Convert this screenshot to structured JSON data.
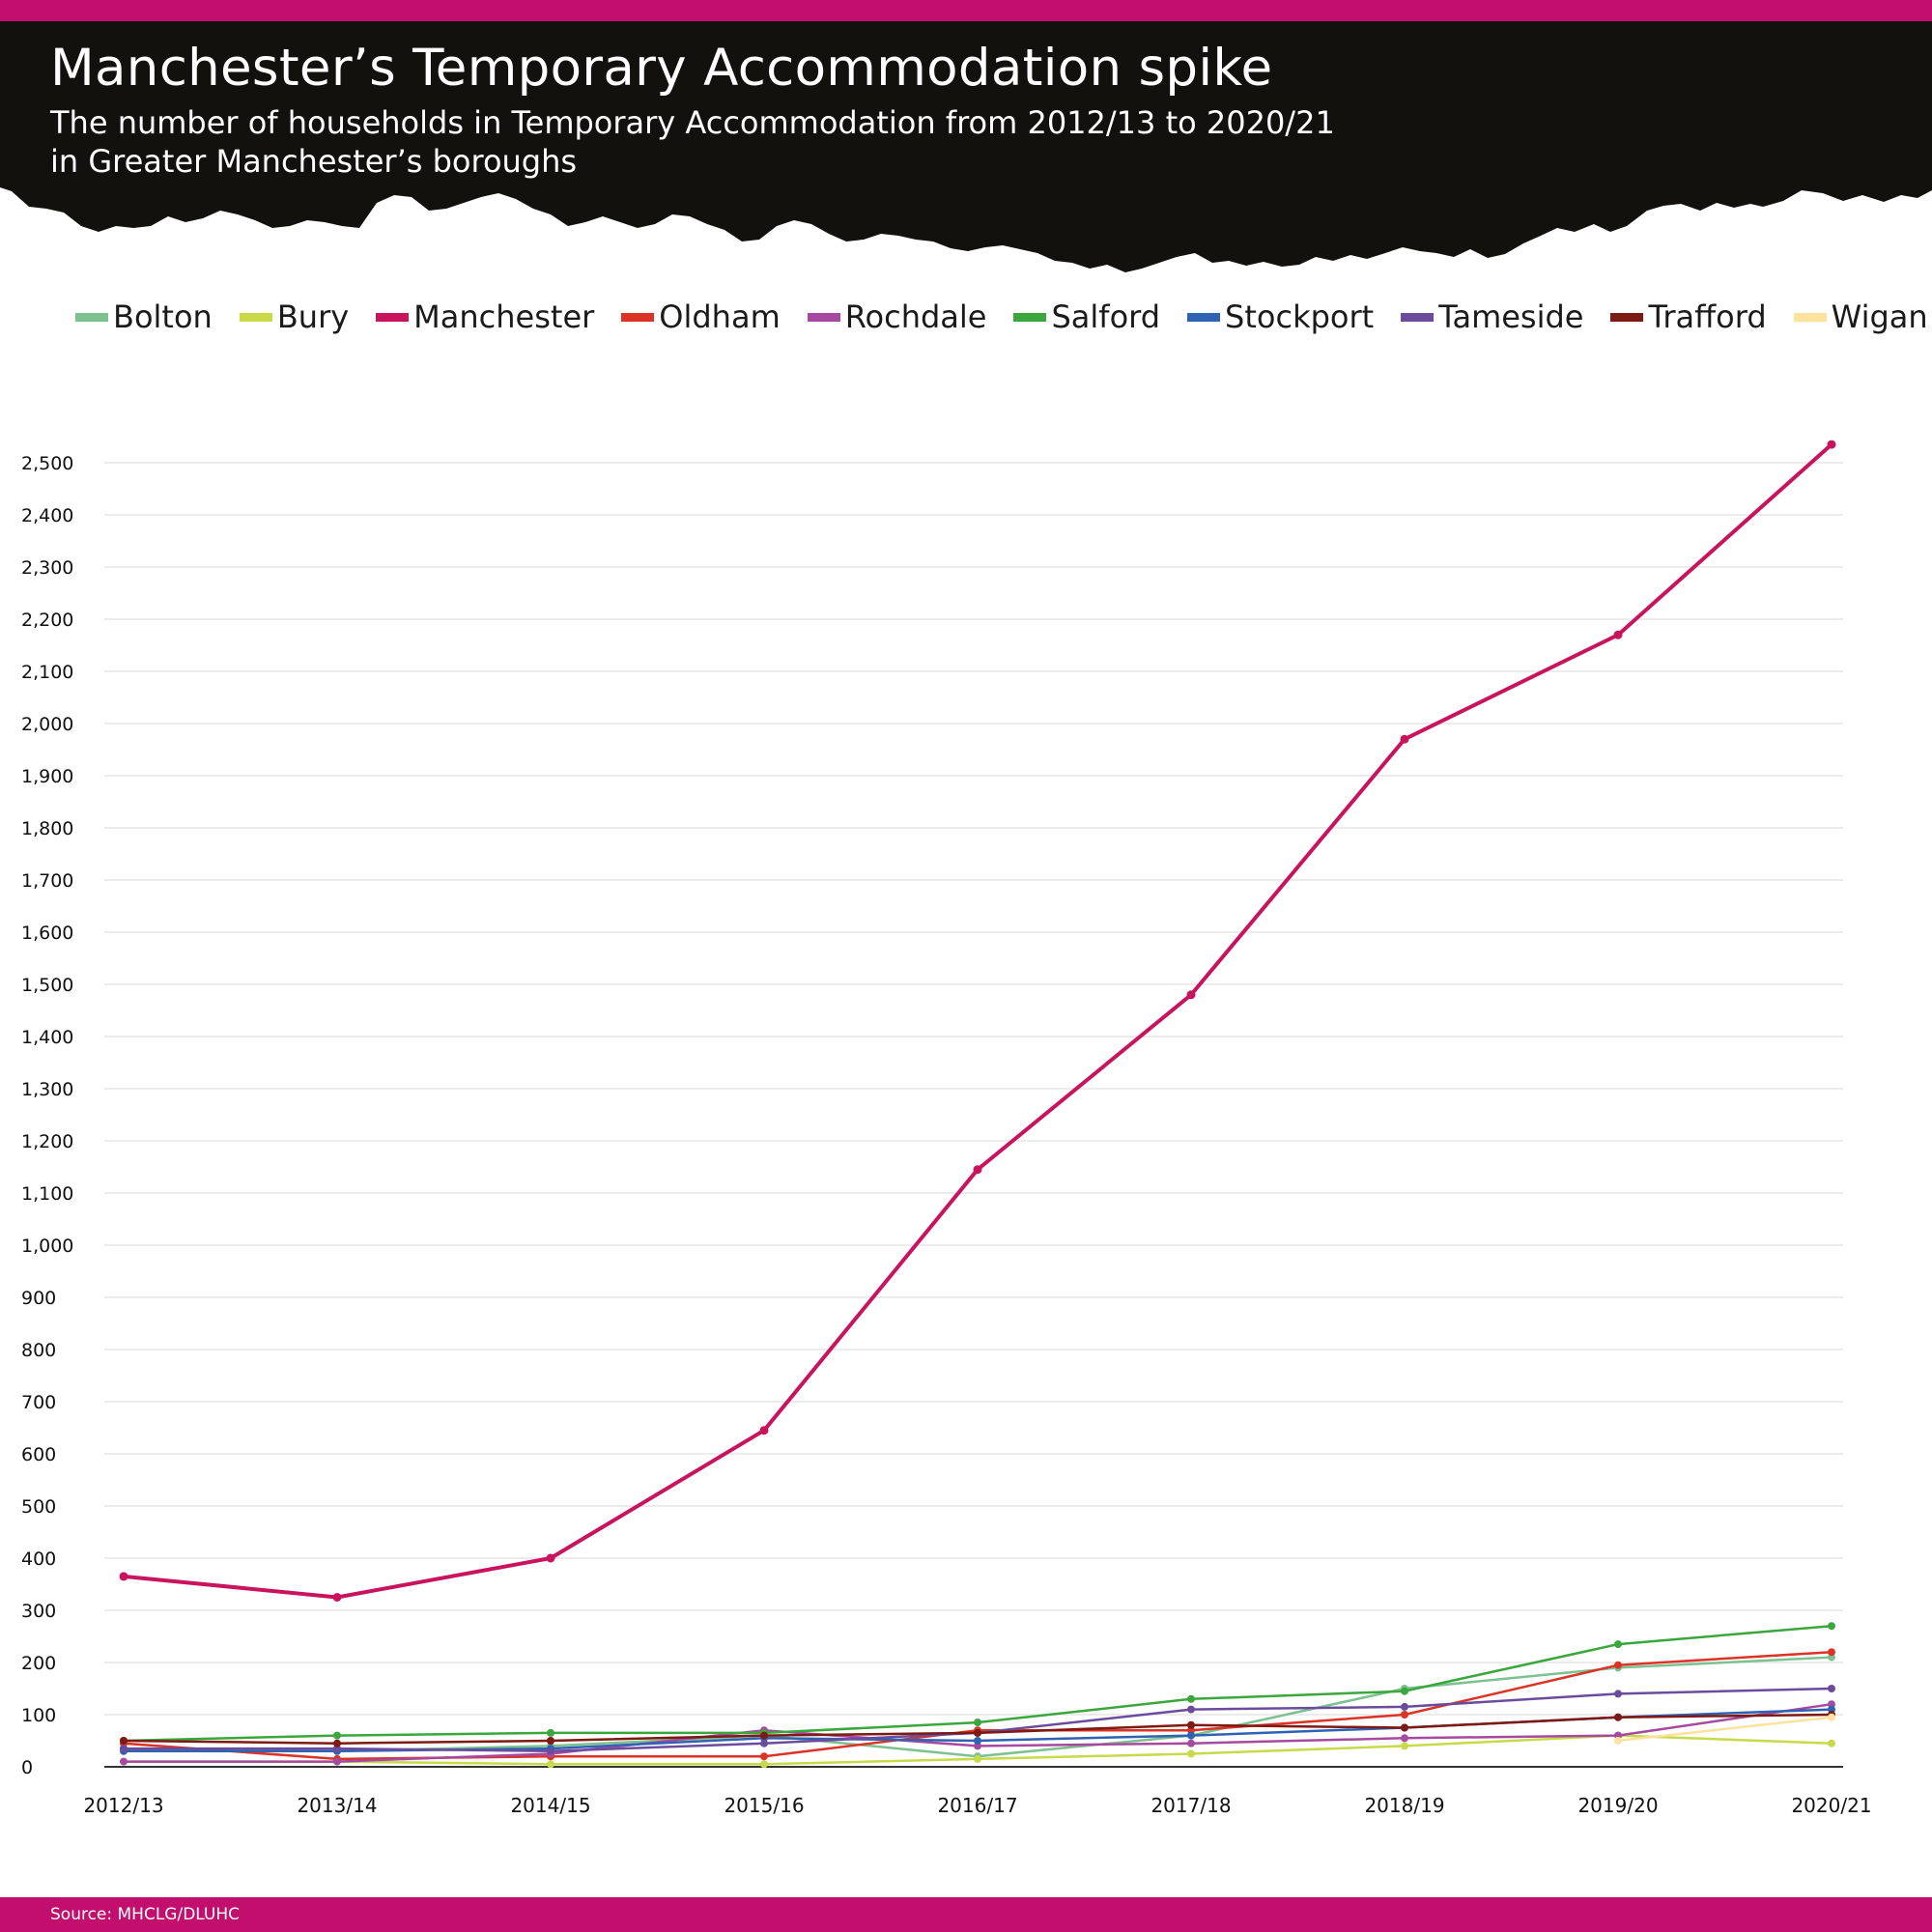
{
  "header": {
    "title": "Manchester’s Temporary Accommodation spike",
    "subtitle_line1": "The number of households in Temporary Accommodation from 2012/13 to 2020/21",
    "subtitle_line2": "in Greater Manchester’s boroughs"
  },
  "footer": {
    "source": "Source: MHCLG/DLUHC"
  },
  "colors": {
    "brand": "#c20e6d",
    "header_background": "#12110d",
    "gridline": "#e6e6e6",
    "axis": "#333333"
  },
  "chart_data": {
    "type": "line",
    "title": "Manchester’s Temporary Accommodation spike",
    "subtitle": "The number of households in Temporary Accommodation from 2012/13 to 2020/21 in Greater Manchester’s boroughs",
    "xlabel": "",
    "ylabel": "",
    "categories": [
      "2012/13",
      "2013/14",
      "2014/15",
      "2015/16",
      "2016/17",
      "2017/18",
      "2018/19",
      "2019/20",
      "2020/21"
    ],
    "ylim": [
      0,
      2500
    ],
    "yticks": [
      0,
      100,
      200,
      300,
      400,
      500,
      600,
      700,
      800,
      900,
      1000,
      1100,
      1200,
      1300,
      1400,
      1500,
      1600,
      1700,
      1800,
      1900,
      2000,
      2100,
      2200,
      2300,
      2400,
      2500
    ],
    "ytick_labels": [
      "0",
      "100",
      "200",
      "300",
      "400",
      "500",
      "600",
      "700",
      "800",
      "900",
      "1,000",
      "1,100",
      "1,200",
      "1,300",
      "1,400",
      "1,500",
      "1,600",
      "1,700",
      "1,800",
      "1,900",
      "2,000",
      "2,100",
      "2,200",
      "2,300",
      "2,400",
      "2,500"
    ],
    "grid": "horizontal",
    "legend_position": "top",
    "series": [
      {
        "name": "Bolton",
        "color": "#7cc18f",
        "values": [
          35,
          30,
          40,
          60,
          20,
          60,
          150,
          190,
          210
        ]
      },
      {
        "name": "Bury",
        "color": "#c8d94a",
        "values": [
          10,
          10,
          5,
          5,
          15,
          25,
          40,
          60,
          45
        ]
      },
      {
        "name": "Manchester",
        "color": "#c8145d",
        "values": [
          365,
          325,
          400,
          645,
          1145,
          1480,
          1970,
          2170,
          2535
        ]
      },
      {
        "name": "Oldham",
        "color": "#db3326",
        "values": [
          45,
          15,
          20,
          20,
          70,
          70,
          100,
          195,
          220
        ]
      },
      {
        "name": "Rochdale",
        "color": "#a64aa0",
        "values": [
          10,
          10,
          25,
          70,
          40,
          45,
          55,
          60,
          120
        ]
      },
      {
        "name": "Salford",
        "color": "#3aa63c",
        "values": [
          50,
          60,
          65,
          65,
          85,
          130,
          145,
          235,
          270
        ]
      },
      {
        "name": "Stockport",
        "color": "#2f62b3",
        "values": [
          30,
          30,
          35,
          55,
          50,
          60,
          75,
          95,
          110
        ]
      },
      {
        "name": "Tameside",
        "color": "#6b4c9c",
        "values": [
          35,
          35,
          30,
          45,
          65,
          110,
          115,
          140,
          150
        ]
      },
      {
        "name": "Trafford",
        "color": "#7c1a13",
        "values": [
          50,
          45,
          50,
          60,
          65,
          80,
          75,
          95,
          100
        ]
      },
      {
        "name": "Wigan",
        "color": "#fce39d",
        "values": [
          null,
          null,
          null,
          null,
          null,
          null,
          null,
          50,
          95
        ]
      }
    ]
  }
}
